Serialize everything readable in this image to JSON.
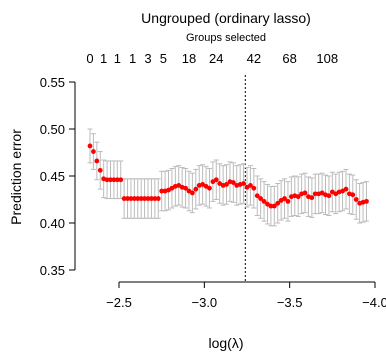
{
  "chart_data": {
    "type": "scatter",
    "title": "Ungrouped (ordinary lasso)",
    "top_axis_label": "Groups selected",
    "top_ticks": [
      {
        "x": -2.33,
        "label": "0"
      },
      {
        "x": -2.41,
        "label": "1"
      },
      {
        "x": -2.49,
        "label": "1"
      },
      {
        "x": -2.58,
        "label": "1"
      },
      {
        "x": -2.67,
        "label": "3"
      },
      {
        "x": -2.76,
        "label": "5"
      },
      {
        "x": -2.91,
        "label": "18"
      },
      {
        "x": -3.07,
        "label": "24"
      },
      {
        "x": -3.29,
        "label": "42"
      },
      {
        "x": -3.5,
        "label": "68"
      },
      {
        "x": -3.72,
        "label": "108"
      }
    ],
    "xlabel": "log(λ)",
    "ylabel": "Prediction error",
    "xlim": [
      -2.33,
      -4.0
    ],
    "ylim": [
      0.35,
      0.55
    ],
    "x_ticks": [
      -2.5,
      -3.0,
      -3.5,
      -4.0
    ],
    "x_tick_labels": [
      "−2.5",
      "−3.0",
      "−3.5",
      "−4.0"
    ],
    "y_ticks": [
      0.35,
      0.4,
      0.45,
      0.5,
      0.55
    ],
    "y_tick_labels": [
      "0.35",
      "0.40",
      "0.45",
      "0.50",
      "0.55"
    ],
    "reference_line_x": -3.24,
    "point_color": "#ff0000",
    "errorbar_color": "#bbbbbb",
    "x": [
      -2.33,
      -2.35,
      -2.37,
      -2.39,
      -2.41,
      -2.43,
      -2.45,
      -2.47,
      -2.49,
      -2.51,
      -2.53,
      -2.55,
      -2.57,
      -2.59,
      -2.61,
      -2.63,
      -2.65,
      -2.67,
      -2.69,
      -2.71,
      -2.73,
      -2.75,
      -2.77,
      -2.79,
      -2.81,
      -2.83,
      -2.85,
      -2.87,
      -2.89,
      -2.91,
      -2.93,
      -2.95,
      -2.97,
      -2.99,
      -3.01,
      -3.03,
      -3.05,
      -3.07,
      -3.09,
      -3.11,
      -3.13,
      -3.15,
      -3.17,
      -3.19,
      -3.21,
      -3.23,
      -3.25,
      -3.27,
      -3.29,
      -3.31,
      -3.33,
      -3.35,
      -3.37,
      -3.39,
      -3.41,
      -3.43,
      -3.45,
      -3.47,
      -3.49,
      -3.51,
      -3.53,
      -3.55,
      -3.57,
      -3.59,
      -3.61,
      -3.63,
      -3.65,
      -3.67,
      -3.69,
      -3.71,
      -3.73,
      -3.75,
      -3.77,
      -3.79,
      -3.81,
      -3.83,
      -3.85,
      -3.87,
      -3.89,
      -3.91,
      -3.93,
      -3.95
    ],
    "y": [
      0.482,
      0.476,
      0.466,
      0.456,
      0.447,
      0.446,
      0.446,
      0.446,
      0.446,
      0.446,
      0.426,
      0.426,
      0.426,
      0.426,
      0.426,
      0.426,
      0.426,
      0.426,
      0.426,
      0.426,
      0.426,
      0.434,
      0.434,
      0.435,
      0.437,
      0.439,
      0.44,
      0.438,
      0.437,
      0.434,
      0.432,
      0.436,
      0.44,
      0.441,
      0.439,
      0.437,
      0.444,
      0.446,
      0.442,
      0.44,
      0.441,
      0.444,
      0.443,
      0.44,
      0.441,
      0.442,
      0.438,
      0.44,
      0.437,
      0.429,
      0.426,
      0.423,
      0.42,
      0.418,
      0.418,
      0.421,
      0.424,
      0.426,
      0.423,
      0.428,
      0.429,
      0.428,
      0.431,
      0.432,
      0.428,
      0.427,
      0.431,
      0.431,
      0.432,
      0.43,
      0.429,
      0.433,
      0.431,
      0.433,
      0.434,
      0.436,
      0.431,
      0.43,
      0.425,
      0.421,
      0.422,
      0.423
    ],
    "error": [
      0.018,
      0.019,
      0.02,
      0.02,
      0.02,
      0.02,
      0.02,
      0.02,
      0.02,
      0.02,
      0.021,
      0.021,
      0.021,
      0.021,
      0.021,
      0.021,
      0.021,
      0.021,
      0.021,
      0.021,
      0.021,
      0.021,
      0.021,
      0.021,
      0.021,
      0.021,
      0.021,
      0.021,
      0.021,
      0.021,
      0.021,
      0.021,
      0.021,
      0.021,
      0.021,
      0.021,
      0.021,
      0.021,
      0.021,
      0.021,
      0.021,
      0.021,
      0.021,
      0.021,
      0.021,
      0.021,
      0.021,
      0.021,
      0.021,
      0.021,
      0.021,
      0.021,
      0.021,
      0.021,
      0.021,
      0.021,
      0.021,
      0.021,
      0.021,
      0.021,
      0.021,
      0.021,
      0.021,
      0.021,
      0.021,
      0.021,
      0.021,
      0.021,
      0.021,
      0.021,
      0.021,
      0.021,
      0.021,
      0.021,
      0.021,
      0.021,
      0.021,
      0.021,
      0.021,
      0.021,
      0.021,
      0.021
    ]
  }
}
